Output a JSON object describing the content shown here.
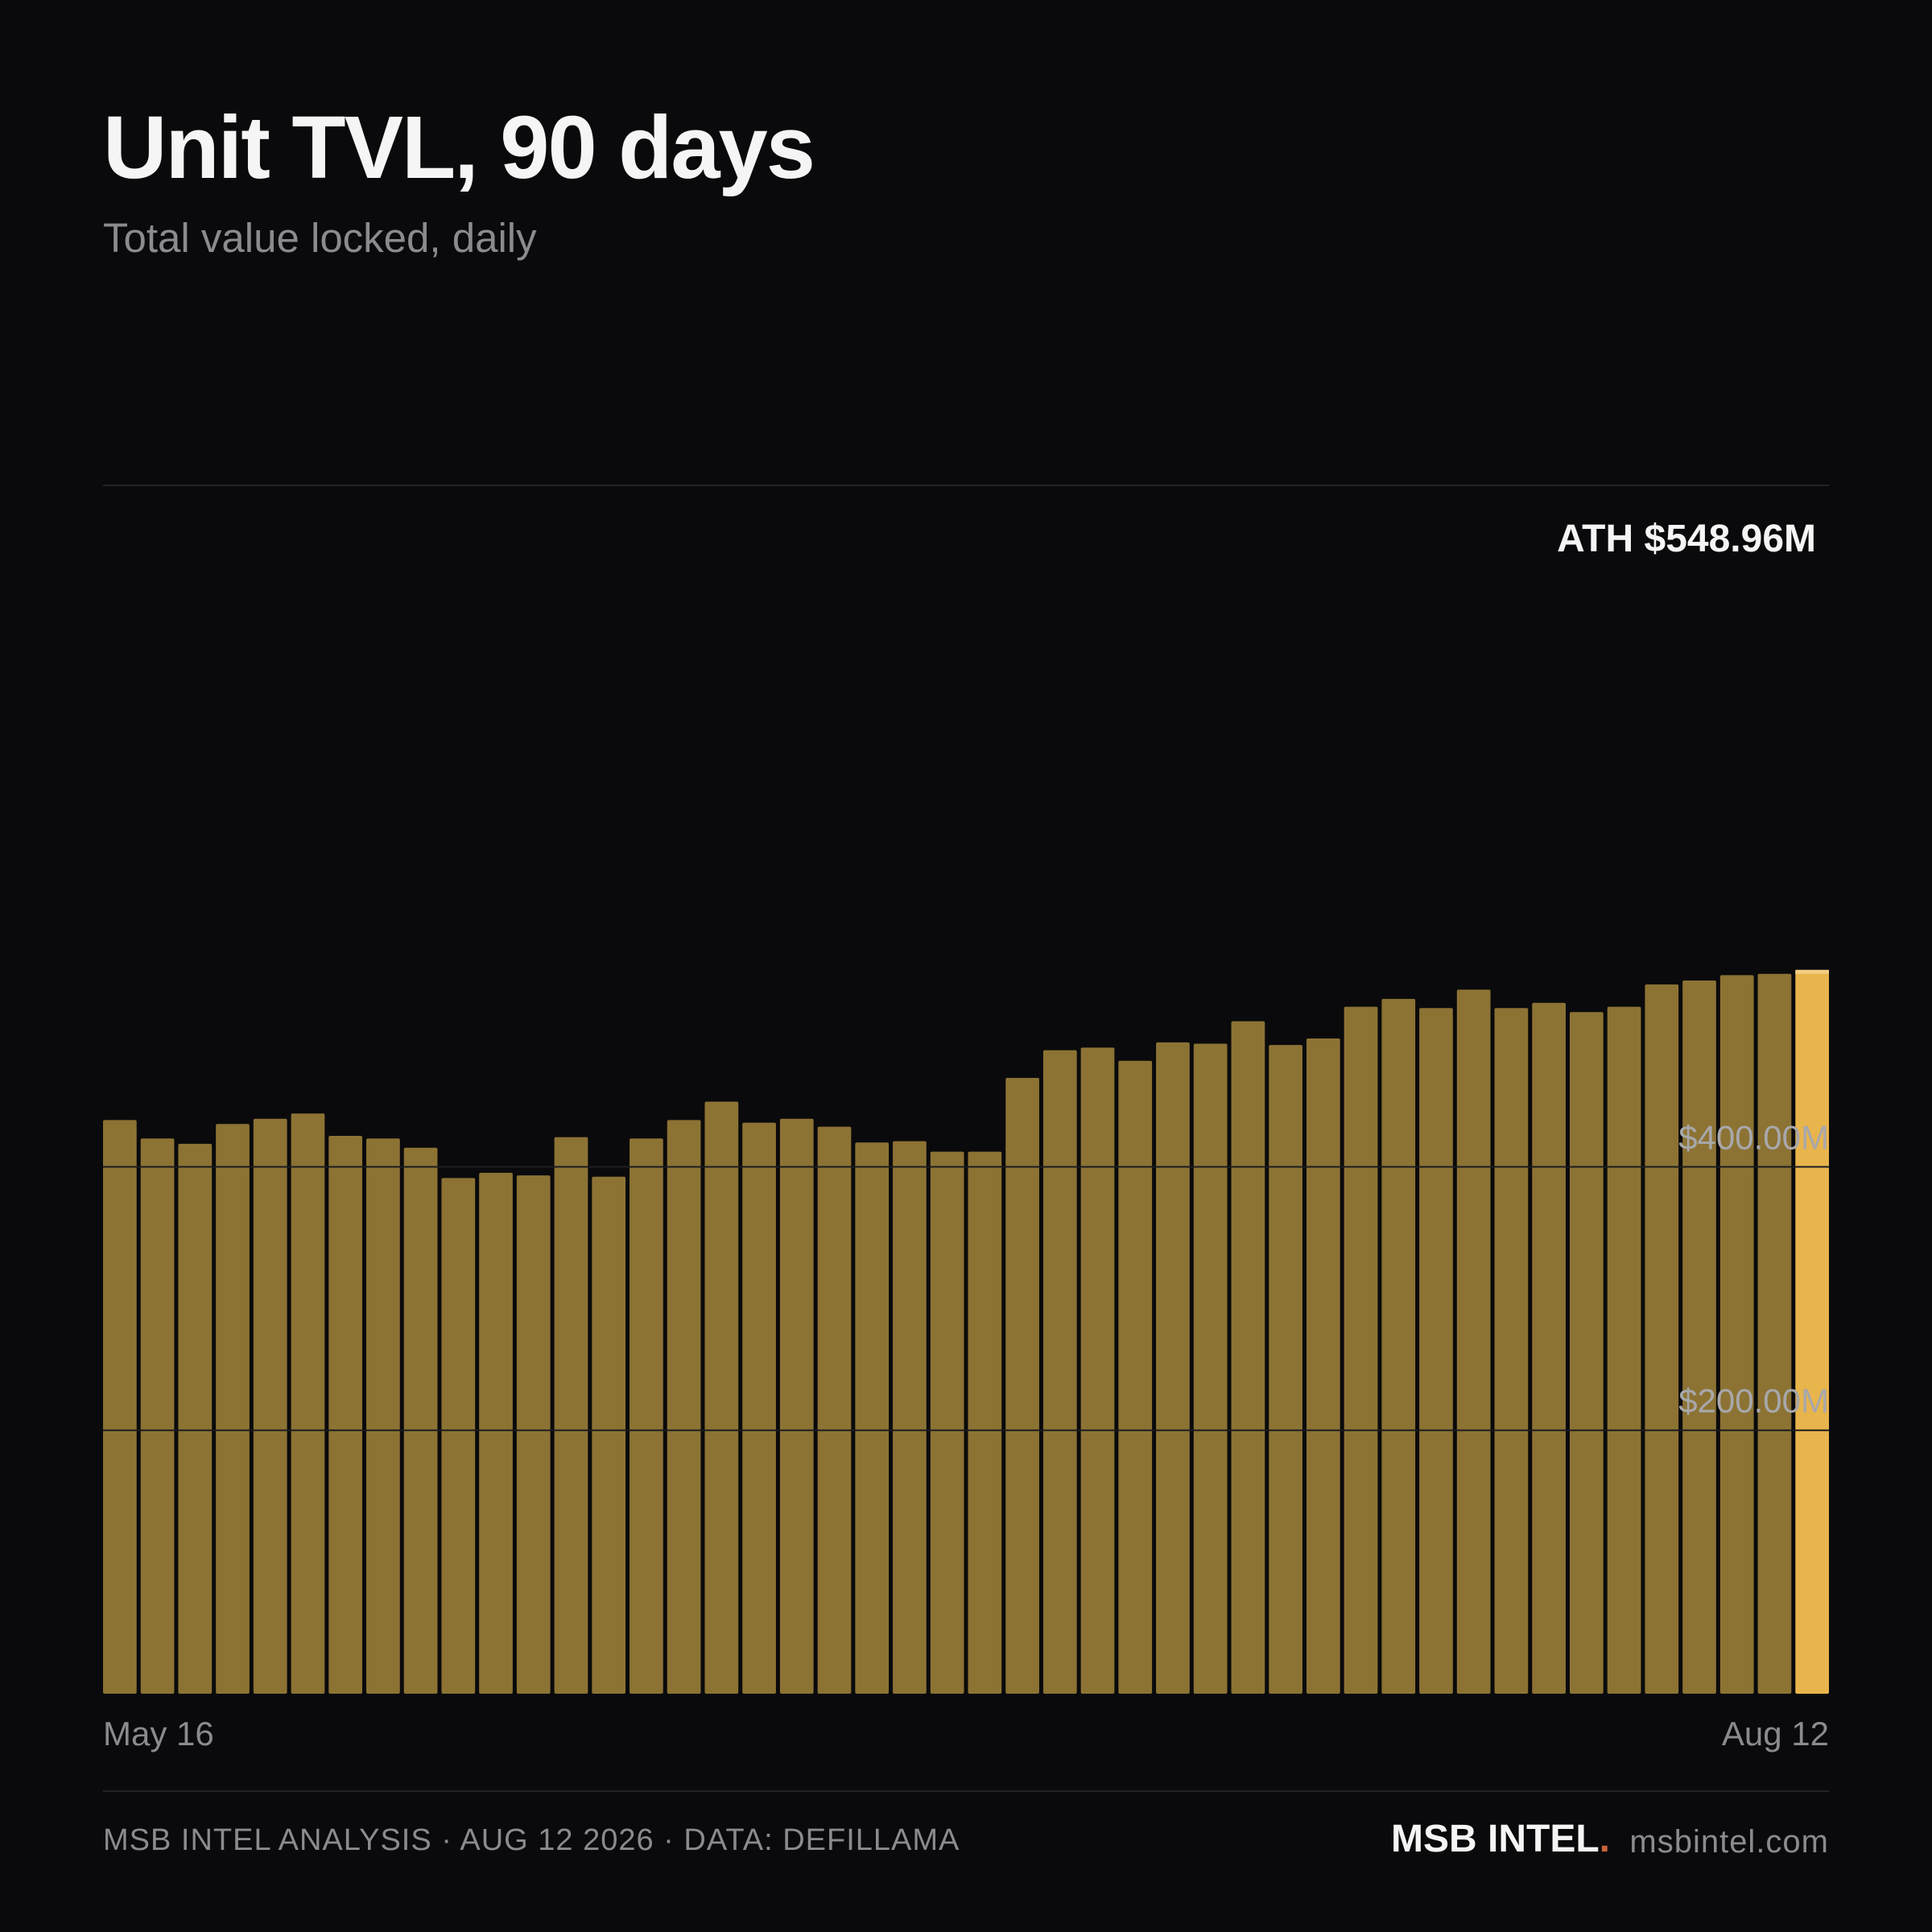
{
  "header": {
    "title": "Unit TVL, 90 days",
    "subtitle": "Total value locked, daily"
  },
  "colors": {
    "background": "#0a0a0c",
    "bar": "#8c7334",
    "bar_highlight": "#e8b44c",
    "grid": "#2a2a2e",
    "text_primary": "#f5f5f5",
    "text_secondary": "#8b8b8f",
    "brand_dot": "#c8643c"
  },
  "chart_data": {
    "type": "bar",
    "title": "Unit TVL, 90 days",
    "subtitle": "Total value locked, daily",
    "xlabel": "",
    "ylabel": "",
    "ylim": [
      0,
      600
    ],
    "y_unit": "$M",
    "grid": true,
    "x_tick_labels": [
      "May 16",
      "Aug 12"
    ],
    "y_tick_labels": [
      {
        "value": 200,
        "label": "$200.00M"
      },
      {
        "value": 400,
        "label": "$400.00M"
      }
    ],
    "annotation": {
      "text": "ATH $548.96M",
      "value": 548.96,
      "bar_index": 46
    },
    "values": [
      435.5,
      421.5,
      417.5,
      432.5,
      436.5,
      440.5,
      423.5,
      421.5,
      414.5,
      391.5,
      395.5,
      393.5,
      422.5,
      392.5,
      421.5,
      435.5,
      449.5,
      433.5,
      436.5,
      430.5,
      418.5,
      419.5,
      411.5,
      411.5,
      467.5,
      488.5,
      490.5,
      480.5,
      494.5,
      493.5,
      510.5,
      492.5,
      497.5,
      521.5,
      527.5,
      520.5,
      534.5,
      520.5,
      524.5,
      517.5,
      521.5,
      538.5,
      541.5,
      545.5,
      546.5,
      548.96
    ]
  },
  "footer": {
    "source": "MSB INTEL ANALYSIS · AUG 12 2026 · DATA: DEFILLAMA",
    "brand": "MSB INTEL",
    "brand_dot": ".",
    "domain": "msbintel.com"
  }
}
